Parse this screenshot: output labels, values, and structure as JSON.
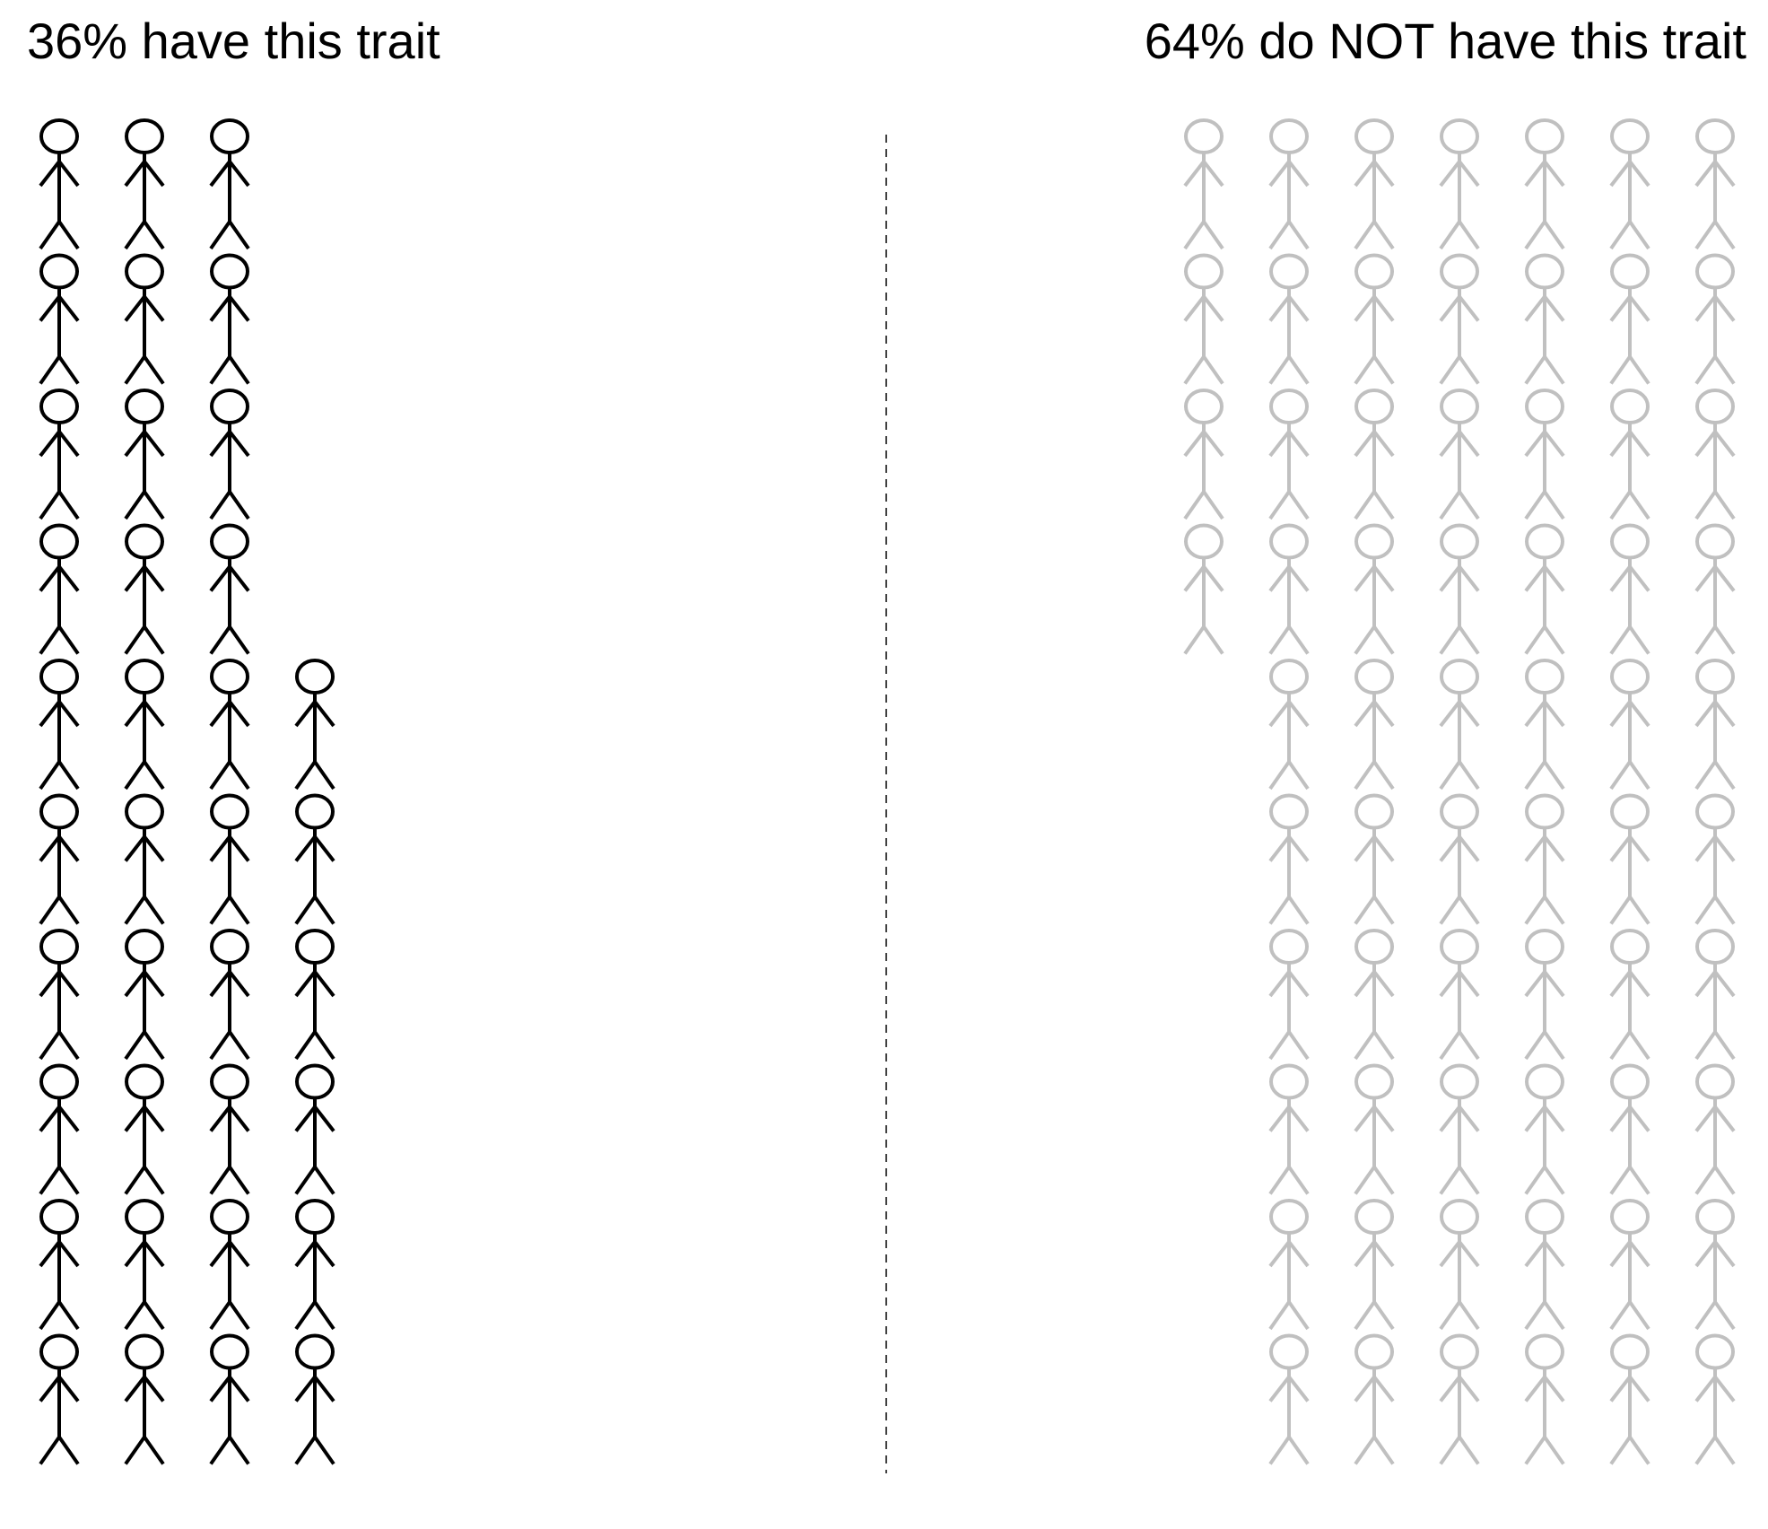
{
  "chart_data": {
    "type": "pictogram",
    "total_icons": 100,
    "groups": [
      {
        "label": "36% have this trait",
        "count": 36,
        "percent": 36,
        "color": "#000000"
      },
      {
        "label": "64% do NOT have this trait",
        "count": 64,
        "percent": 64,
        "color": "#c0c0c0"
      }
    ],
    "icon": "stick-figure-icon",
    "divider": "dashed-vertical-line"
  }
}
